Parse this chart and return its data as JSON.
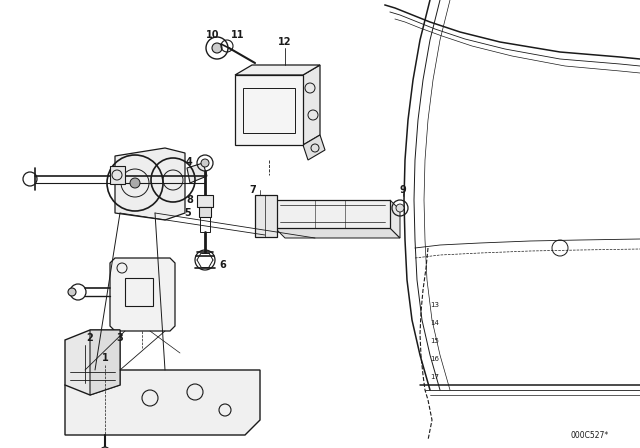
{
  "background_color": "#ffffff",
  "line_color": "#1a1a1a",
  "fig_width": 6.4,
  "fig_height": 4.48,
  "dpi": 100,
  "part_number": "000C527*"
}
